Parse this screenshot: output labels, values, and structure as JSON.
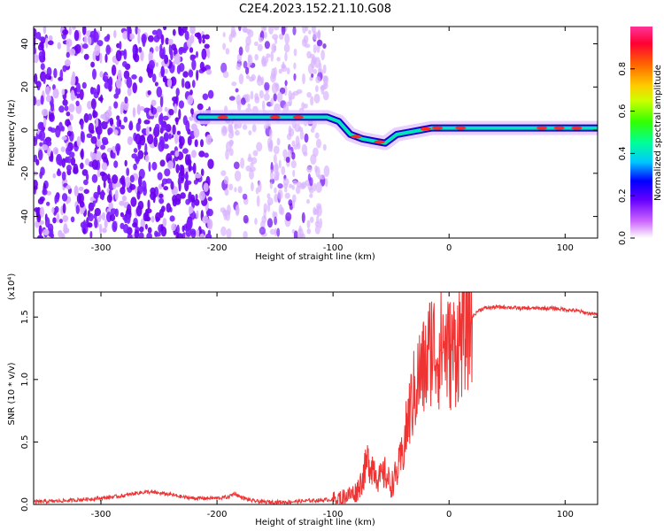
{
  "title": "C2E4.2023.152.21.10.G08",
  "chart_data": [
    {
      "type": "heatmap",
      "xlabel": "Height of straight line (km)",
      "ylabel": "Frequency (Hz)",
      "xlim": [
        -358,
        128
      ],
      "ylim": [
        -50,
        48
      ],
      "xticks": [
        -300,
        -200,
        -100,
        0,
        100
      ],
      "yticks": [
        -40,
        -20,
        0,
        20,
        40
      ],
      "colorbar": {
        "label": "Normalized spectral amplitude",
        "range": [
          0.0,
          1.0
        ],
        "ticks": [
          "0.0",
          "0.2",
          "0.4",
          "0.6",
          "0.8"
        ]
      },
      "ridge": {
        "x": [
          -215,
          -200,
          -180,
          -160,
          -140,
          -120,
          -105,
          -95,
          -85,
          -75,
          -65,
          -55,
          -45,
          -35,
          -25,
          -15,
          0,
          25,
          50,
          75,
          100,
          128
        ],
        "y": [
          6,
          6,
          6,
          6,
          6,
          6,
          6,
          4,
          -2,
          -4,
          -5,
          -6,
          -2,
          -1,
          0,
          1,
          1,
          1,
          1,
          1,
          1,
          1
        ]
      },
      "noise_band": {
        "x_from": -358,
        "x_to": -105,
        "dense_until": -205
      }
    },
    {
      "type": "line",
      "xlabel": "Height of straight line (km)",
      "ylabel": "SNR (10 * v/v)",
      "multiplier": "(x10⁴)",
      "xlim": [
        -358,
        128
      ],
      "ylim": [
        0,
        1.7
      ],
      "xticks": [
        -300,
        -200,
        -100,
        0,
        100
      ],
      "yticks": [
        "0.0",
        "0.5",
        "1.0",
        "1.5"
      ],
      "series": [
        {
          "color": "#ee3333",
          "x": [
            -358,
            -330,
            -300,
            -280,
            -270,
            -260,
            -250,
            -240,
            -230,
            -220,
            -210,
            -200,
            -190,
            -185,
            -180,
            -170,
            -160,
            -140,
            -120,
            -100,
            -90,
            -80,
            -75,
            -70,
            -65,
            -60,
            -55,
            -50,
            -45,
            -40,
            -35,
            -30,
            -25,
            -20,
            -15,
            -10,
            -5,
            0,
            5,
            10,
            15,
            20,
            25,
            30,
            40,
            50,
            60,
            70,
            80,
            90,
            100,
            110,
            120,
            128
          ],
          "y": [
            0.02,
            0.03,
            0.05,
            0.07,
            0.09,
            0.1,
            0.09,
            0.08,
            0.06,
            0.05,
            0.05,
            0.05,
            0.06,
            0.09,
            0.06,
            0.03,
            0.02,
            0.02,
            0.03,
            0.04,
            0.06,
            0.1,
            0.2,
            0.35,
            0.3,
            0.2,
            0.25,
            0.15,
            0.25,
            0.4,
            0.7,
            0.9,
            1.05,
            1.1,
            1.3,
            1.2,
            1.3,
            1.2,
            1.25,
            1.35,
            1.45,
            1.5,
            1.55,
            1.57,
            1.58,
            1.58,
            1.57,
            1.57,
            1.57,
            1.57,
            1.56,
            1.55,
            1.53,
            1.52
          ]
        }
      ]
    }
  ]
}
